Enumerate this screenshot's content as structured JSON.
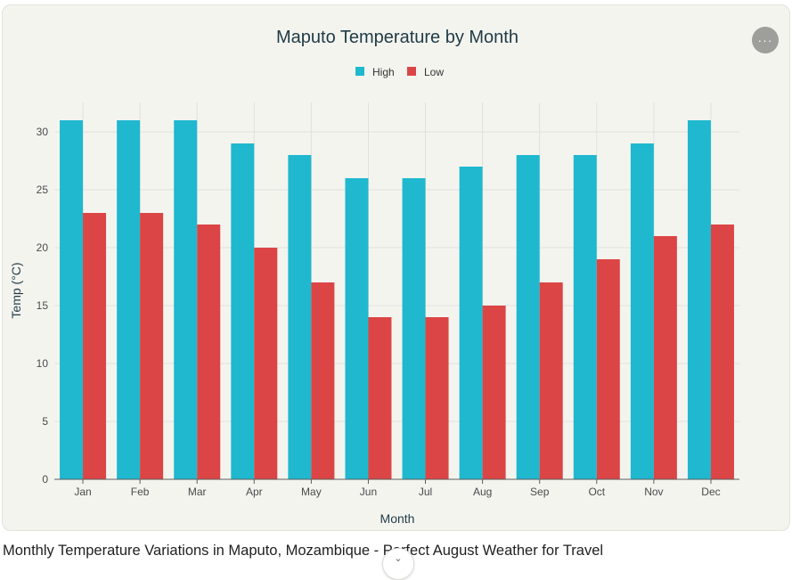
{
  "chart_data": {
    "type": "bar",
    "title": "Maputo Temperature by Month",
    "xlabel": "Month",
    "ylabel": "Temp (°C)",
    "categories": [
      "Jan",
      "Feb",
      "Mar",
      "Apr",
      "May",
      "Jun",
      "Jul",
      "Aug",
      "Sep",
      "Oct",
      "Nov",
      "Dec"
    ],
    "series": [
      {
        "name": "High",
        "color": "#1fb8cf",
        "values": [
          31,
          31,
          31,
          29,
          28,
          26,
          26,
          27,
          28,
          28,
          29,
          31
        ]
      },
      {
        "name": "Low",
        "color": "#dc4545",
        "values": [
          23,
          23,
          22,
          20,
          17,
          14,
          14,
          15,
          17,
          19,
          21,
          22
        ]
      }
    ],
    "ylim": [
      0,
      32.5
    ],
    "yticks": [
      0,
      5,
      10,
      15,
      20,
      25,
      30
    ],
    "grid": true,
    "legend_position": "top-center"
  },
  "menu": {
    "more_icon": "ellipsis-icon",
    "more_label": "···"
  },
  "caption": "Monthly Temperature Variations in Maputo, Mozambique - Perfect August Weather for Travel",
  "scroll_icon": "chevron-down-icon"
}
